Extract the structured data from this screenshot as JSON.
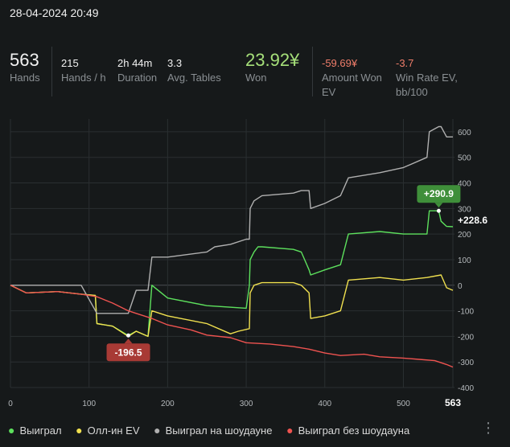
{
  "session": {
    "datetime": "28-04-2024 20:49"
  },
  "stats": {
    "hands": {
      "value": "563",
      "label": "Hands"
    },
    "hands_per_hour": {
      "value": "215",
      "label": "Hands / h"
    },
    "duration": {
      "value": "2h 44m",
      "label": "Duration"
    },
    "avg_tables": {
      "value": "3.3",
      "label": "Avg. Tables"
    },
    "won": {
      "value": "23.92¥",
      "label": "Won"
    },
    "amount_won_ev": {
      "value": "-59.69¥",
      "label_line1": "Amount Won",
      "label_line2": "EV"
    },
    "win_rate_ev": {
      "value": "-3.7",
      "label_line1": "Win Rate EV,",
      "label_line2": "bb/100"
    }
  },
  "chart_data": {
    "type": "line",
    "xlim": [
      0,
      563
    ],
    "ylim": [
      -400,
      650
    ],
    "x_ticks": [
      "0",
      "100",
      "200",
      "300",
      "400",
      "500",
      "563"
    ],
    "y_ticks": [
      "600",
      "500",
      "400",
      "300",
      "200",
      "100",
      "0",
      "-100",
      "-200",
      "-300",
      "-400"
    ],
    "grid": true,
    "series": [
      {
        "name": "Выиграл",
        "color": "#5de05d",
        "x": [
          0,
          20,
          60,
          90,
          108,
          110,
          130,
          150,
          160,
          175,
          180,
          200,
          250,
          300,
          304,
          305,
          310,
          315,
          320,
          360,
          370,
          380,
          382,
          400,
          420,
          430,
          470,
          500,
          530,
          533,
          545,
          548,
          555,
          563
        ],
        "y": [
          0,
          -30,
          -25,
          -35,
          -40,
          -150,
          -160,
          -196.5,
          -180,
          -200,
          0,
          -50,
          -80,
          -90,
          0,
          100,
          130,
          150,
          150,
          140,
          130,
          60,
          40,
          60,
          80,
          200,
          210,
          200,
          200,
          290.9,
          290.9,
          250,
          230,
          228.6
        ]
      },
      {
        "name": "Олл-ин EV",
        "color": "#f0e04f",
        "x": [
          0,
          20,
          60,
          90,
          108,
          110,
          130,
          150,
          160,
          175,
          180,
          200,
          250,
          280,
          290,
          304,
          305,
          310,
          320,
          360,
          370,
          380,
          382,
          400,
          420,
          430,
          470,
          500,
          530,
          548,
          555,
          563
        ],
        "y": [
          0,
          -30,
          -25,
          -35,
          -40,
          -150,
          -160,
          -200,
          -180,
          -200,
          -100,
          -120,
          -150,
          -190,
          -180,
          -170,
          -30,
          0,
          10,
          10,
          0,
          -30,
          -130,
          -120,
          -100,
          20,
          30,
          20,
          30,
          40,
          -10,
          -20
        ]
      },
      {
        "name": "Выиграл на шоудауне",
        "color": "#b0b0b0",
        "x": [
          0,
          20,
          60,
          90,
          110,
          150,
          160,
          170,
          175,
          180,
          200,
          250,
          260,
          280,
          300,
          304,
          305,
          310,
          320,
          360,
          370,
          380,
          382,
          400,
          420,
          430,
          470,
          500,
          530,
          533,
          545,
          548,
          555,
          563
        ],
        "y": [
          0,
          0,
          0,
          0,
          -110,
          -110,
          -20,
          -20,
          -20,
          110,
          110,
          130,
          150,
          160,
          180,
          180,
          300,
          330,
          350,
          360,
          370,
          370,
          300,
          320,
          350,
          420,
          440,
          460,
          500,
          600,
          620,
          620,
          580,
          580
        ]
      },
      {
        "name": "Выиграл без шоудауна",
        "color": "#ef5350",
        "x": [
          0,
          20,
          60,
          90,
          110,
          130,
          150,
          160,
          180,
          200,
          230,
          250,
          280,
          300,
          330,
          360,
          380,
          400,
          420,
          450,
          470,
          500,
          520,
          540,
          555,
          563
        ],
        "y": [
          0,
          -30,
          -25,
          -35,
          -45,
          -70,
          -100,
          -110,
          -130,
          -155,
          -175,
          -195,
          -205,
          -225,
          -230,
          -240,
          -250,
          -265,
          -275,
          -270,
          -280,
          -285,
          -290,
          -295,
          -310,
          -320
        ]
      }
    ],
    "annotations": [
      {
        "x": 150,
        "y": -196.5,
        "text": "-196.5",
        "color": "#a83a35"
      },
      {
        "x": 545,
        "y": 290.9,
        "text": "+290.9",
        "color": "#3f8f3a"
      }
    ],
    "end_value": {
      "text": "+228.6"
    }
  },
  "legend_dot": "●",
  "more_glyph": "⋮"
}
